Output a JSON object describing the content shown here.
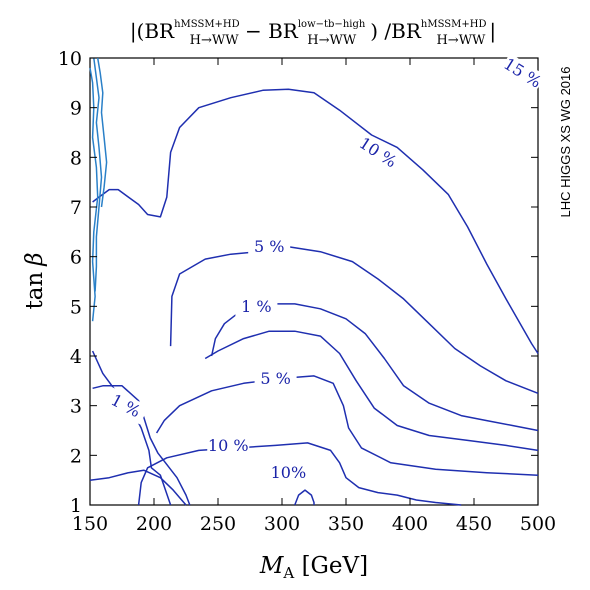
{
  "chart_data": {
    "type": "contour",
    "title_parts": {
      "open": "|(BR",
      "sup1": "hMSSM+HD",
      "sub1": "H→WW",
      "minus": " − BR",
      "sup2": "low−tb−high",
      "sub2": "H→WW",
      "mid": ") /BR",
      "sup3": "hMSSM+HD",
      "sub3": "H→WW",
      "close": "|"
    },
    "xlabel_main": "M",
    "xlabel_sub": "A",
    "xlabel_unit": " [GeV]",
    "ylabel_main": "tan",
    "ylabel_greek": "β",
    "watermark": "LHC HIGGS XS WG 2016",
    "xlim": [
      150,
      500
    ],
    "ylim": [
      1,
      10
    ],
    "xticks": [
      150,
      200,
      250,
      300,
      350,
      400,
      450,
      500
    ],
    "yticks": [
      1,
      2,
      3,
      4,
      5,
      6,
      7,
      8,
      9,
      10
    ],
    "colors": {
      "contour": "#1f2fb0",
      "contour_light": "#2a80c8",
      "label": "#1a23a8"
    },
    "contours": [
      {
        "name": "15% contour",
        "points": [
          [
            478,
            10.0
          ],
          [
            490,
            9.7
          ],
          [
            500,
            9.4
          ]
        ]
      },
      {
        "name": "10% contour (upper)",
        "points": [
          [
            152,
            7.1
          ],
          [
            157,
            7.2
          ],
          [
            165,
            7.35
          ],
          [
            172,
            7.35
          ],
          [
            180,
            7.2
          ],
          [
            188,
            7.05
          ],
          [
            195,
            6.85
          ],
          [
            205,
            6.8
          ],
          [
            210,
            7.2
          ],
          [
            213,
            8.1
          ],
          [
            220,
            8.6
          ],
          [
            235,
            9.0
          ],
          [
            260,
            9.2
          ],
          [
            285,
            9.35
          ],
          [
            305,
            9.37
          ],
          [
            325,
            9.3
          ],
          [
            345,
            8.95
          ],
          [
            370,
            8.45
          ],
          [
            390,
            8.2
          ],
          [
            410,
            7.75
          ],
          [
            430,
            7.25
          ],
          [
            445,
            6.6
          ],
          [
            460,
            5.85
          ],
          [
            475,
            5.15
          ],
          [
            485,
            4.7
          ],
          [
            495,
            4.25
          ],
          [
            500,
            4.05
          ]
        ]
      },
      {
        "name": "5% contour (upper)",
        "points": [
          [
            213,
            4.2
          ],
          [
            214,
            5.2
          ],
          [
            220,
            5.65
          ],
          [
            240,
            5.95
          ],
          [
            260,
            6.05
          ],
          [
            282,
            6.1
          ],
          [
            305,
            6.2
          ],
          [
            330,
            6.1
          ],
          [
            355,
            5.9
          ],
          [
            375,
            5.55
          ],
          [
            395,
            5.15
          ],
          [
            415,
            4.65
          ],
          [
            435,
            4.15
          ],
          [
            455,
            3.8
          ],
          [
            475,
            3.5
          ],
          [
            490,
            3.35
          ],
          [
            500,
            3.25
          ]
        ]
      },
      {
        "name": "1% contour (upper)",
        "points": [
          [
            245,
            4.0
          ],
          [
            248,
            4.35
          ],
          [
            255,
            4.65
          ],
          [
            270,
            4.95
          ],
          [
            290,
            5.05
          ],
          [
            310,
            5.05
          ],
          [
            330,
            4.95
          ],
          [
            350,
            4.75
          ],
          [
            365,
            4.45
          ],
          [
            380,
            3.95
          ],
          [
            395,
            3.4
          ],
          [
            415,
            3.05
          ],
          [
            440,
            2.8
          ],
          [
            460,
            2.7
          ],
          [
            480,
            2.6
          ],
          [
            500,
            2.5
          ]
        ]
      },
      {
        "name": "1% contour (lower)",
        "points": [
          [
            240,
            3.95
          ],
          [
            250,
            4.1
          ],
          [
            270,
            4.35
          ],
          [
            290,
            4.5
          ],
          [
            310,
            4.5
          ],
          [
            330,
            4.4
          ],
          [
            345,
            4.05
          ],
          [
            358,
            3.5
          ],
          [
            372,
            2.95
          ],
          [
            390,
            2.6
          ],
          [
            415,
            2.4
          ],
          [
            445,
            2.3
          ],
          [
            475,
            2.2
          ],
          [
            500,
            2.1
          ]
        ]
      },
      {
        "name": "5% contour (lower)",
        "points": [
          [
            202,
            2.45
          ],
          [
            208,
            2.7
          ],
          [
            220,
            3.0
          ],
          [
            245,
            3.3
          ],
          [
            270,
            3.45
          ],
          [
            300,
            3.55
          ],
          [
            325,
            3.6
          ],
          [
            340,
            3.45
          ],
          [
            348,
            3.0
          ],
          [
            352,
            2.55
          ],
          [
            362,
            2.15
          ],
          [
            385,
            1.85
          ],
          [
            420,
            1.72
          ],
          [
            460,
            1.65
          ],
          [
            500,
            1.6
          ]
        ]
      },
      {
        "name": "10% contour (lower)",
        "points": [
          [
            188,
            1.0
          ],
          [
            190,
            1.45
          ],
          [
            195,
            1.75
          ],
          [
            210,
            1.95
          ],
          [
            235,
            2.1
          ],
          [
            265,
            2.15
          ],
          [
            295,
            2.2
          ],
          [
            320,
            2.25
          ],
          [
            338,
            2.1
          ],
          [
            345,
            1.85
          ],
          [
            350,
            1.55
          ],
          [
            360,
            1.35
          ],
          [
            375,
            1.25
          ],
          [
            390,
            1.2
          ],
          [
            405,
            1.1
          ],
          [
            420,
            1.05
          ],
          [
            440,
            1.0
          ]
        ]
      },
      {
        "name": "1% contour (left)",
        "points": [
          [
            152,
            4.1
          ],
          [
            160,
            3.65
          ],
          [
            170,
            3.3
          ],
          [
            180,
            3.05
          ],
          [
            190,
            2.55
          ],
          [
            196,
            2.1
          ],
          [
            198,
            1.75
          ],
          [
            205,
            1.6
          ],
          [
            213,
            1.0
          ]
        ]
      },
      {
        "name": "left contour upper band",
        "points": [
          [
            152,
            3.35
          ],
          [
            160,
            3.4
          ],
          [
            175,
            3.4
          ],
          [
            188,
            3.1
          ],
          [
            197,
            2.35
          ],
          [
            203,
            2.05
          ],
          [
            209,
            1.85
          ],
          [
            218,
            1.55
          ],
          [
            225,
            1.2
          ],
          [
            228,
            1.0
          ]
        ]
      },
      {
        "name": "left contour lower band",
        "points": [
          [
            150,
            1.5
          ],
          [
            165,
            1.55
          ],
          [
            180,
            1.65
          ],
          [
            192,
            1.7
          ],
          [
            205,
            1.55
          ],
          [
            215,
            1.3
          ],
          [
            220,
            1.15
          ],
          [
            225,
            1.0
          ]
        ]
      },
      {
        "name": "small contour near 10% label",
        "points": [
          [
            310,
            1.0
          ],
          [
            313,
            1.2
          ],
          [
            318,
            1.3
          ],
          [
            323,
            1.2
          ],
          [
            325,
            1.05
          ],
          [
            325,
            1.0
          ]
        ]
      },
      {
        "name": "left edge contour",
        "points": [
          [
            150,
            9.8
          ],
          [
            152,
            9.5
          ],
          [
            153,
            9.0
          ],
          [
            152,
            8.4
          ],
          [
            155,
            7.8
          ],
          [
            156,
            7.2
          ],
          [
            153,
            6.5
          ],
          [
            152,
            5.9
          ],
          [
            154,
            5.2
          ],
          [
            152,
            4.7
          ]
        ]
      },
      {
        "name": "left edge contour 2",
        "points": [
          [
            153,
            10.0
          ],
          [
            155,
            9.6
          ],
          [
            157,
            9.2
          ],
          [
            155,
            8.7
          ],
          [
            157,
            8.2
          ],
          [
            159,
            7.6
          ],
          [
            157,
            7.0
          ],
          [
            155,
            6.4
          ],
          [
            155,
            5.8
          ],
          [
            154,
            5.3
          ]
        ]
      },
      {
        "name": "left edge contour 3",
        "points": [
          [
            156,
            10.0
          ],
          [
            158,
            9.7
          ],
          [
            160,
            9.3
          ],
          [
            159,
            8.9
          ],
          [
            161,
            8.4
          ],
          [
            163,
            7.9
          ],
          [
            161,
            7.4
          ],
          [
            159,
            7.0
          ]
        ]
      }
    ],
    "contour_labels": [
      {
        "text": "15 %",
        "x": 488,
        "y": 9.7,
        "angle": 32
      },
      {
        "text": "10 %",
        "x": 375,
        "y": 8.1,
        "angle": 33
      },
      {
        "text": "5 %",
        "x": 290,
        "y": 6.2,
        "angle": 0
      },
      {
        "text": "1 %",
        "x": 280,
        "y": 5.0,
        "angle": 0
      },
      {
        "text": "5 %",
        "x": 295,
        "y": 3.55,
        "angle": 0
      },
      {
        "text": "1 %",
        "x": 178,
        "y": 3.0,
        "angle": 28
      },
      {
        "text": "10 %",
        "x": 258,
        "y": 2.2,
        "angle": 0
      },
      {
        "text": "10%",
        "x": 305,
        "y": 1.65,
        "angle": 0
      }
    ]
  }
}
